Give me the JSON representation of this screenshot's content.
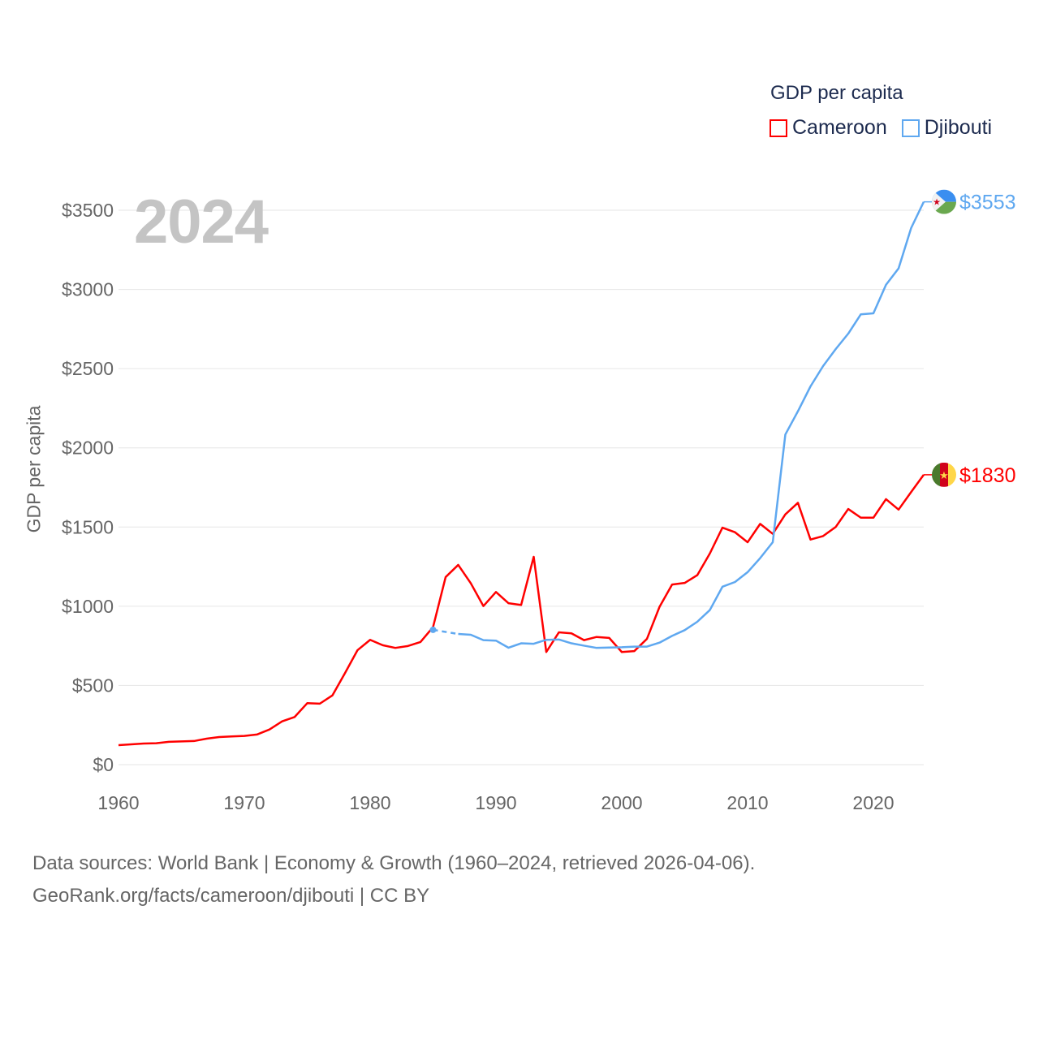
{
  "legend": {
    "title": "GDP per capita",
    "items": [
      {
        "label": "Cameroon",
        "color": "#ff0000"
      },
      {
        "label": "Djibouti",
        "color": "#5fa8f0"
      }
    ]
  },
  "year_watermark": "2024",
  "footer": {
    "line1": "Data sources: World Bank | Economy & Growth (1960–2024, retrieved 2026-04-06).",
    "line2": "GeoRank.org/facts/cameroon/djibouti | CC BY"
  },
  "chart_data": {
    "type": "line",
    "title": "GDP per capita",
    "xlabel": "",
    "ylabel": "GDP per capita",
    "xlim": [
      1960,
      2024
    ],
    "ylim": [
      0,
      3500
    ],
    "x_ticks": [
      1960,
      1970,
      1980,
      1990,
      2000,
      2010,
      2020
    ],
    "y_ticks": [
      0,
      500,
      1000,
      1500,
      2000,
      2500,
      3000,
      3500
    ],
    "y_tick_labels": [
      "$0",
      "$500",
      "$1000",
      "$1500",
      "$2000",
      "$2500",
      "$3000",
      "$3500"
    ],
    "grid": true,
    "legend_position": "top-right",
    "x_start": 1960,
    "series": [
      {
        "name": "Cameroon",
        "color": "#ff0000",
        "end_label": "$1830",
        "values": [
          123,
          128,
          133,
          135,
          144,
          147,
          149,
          164,
          174,
          178,
          181,
          190,
          222,
          273,
          301,
          388,
          385,
          437,
          578,
          723,
          788,
          754,
          737,
          749,
          774,
          868,
          1184,
          1261,
          1145,
          1001,
          1090,
          1019,
          1008,
          1312,
          711,
          835,
          829,
          786,
          806,
          800,
          711,
          717,
          794,
          996,
          1137,
          1147,
          1196,
          1333,
          1496,
          1467,
          1404,
          1520,
          1457,
          1580,
          1653,
          1421,
          1443,
          1500,
          1614,
          1559,
          1559,
          1676,
          1610,
          1721,
          1830
        ]
      },
      {
        "name": "Djibouti",
        "color": "#5fa8f0",
        "end_label": "$3553",
        "values": [
          null,
          null,
          null,
          null,
          null,
          null,
          null,
          null,
          null,
          null,
          null,
          null,
          null,
          null,
          null,
          null,
          null,
          null,
          null,
          null,
          null,
          null,
          null,
          null,
          null,
          851,
          null,
          825,
          820,
          786,
          783,
          738,
          766,
          763,
          788,
          790,
          766,
          751,
          737,
          739,
          741,
          745,
          745,
          770,
          813,
          849,
          902,
          976,
          1123,
          1153,
          1215,
          1304,
          1404,
          2084,
          2231,
          2388,
          2516,
          2623,
          2721,
          2843,
          2849,
          3029,
          3133,
          3388,
          3553
        ]
      }
    ]
  }
}
